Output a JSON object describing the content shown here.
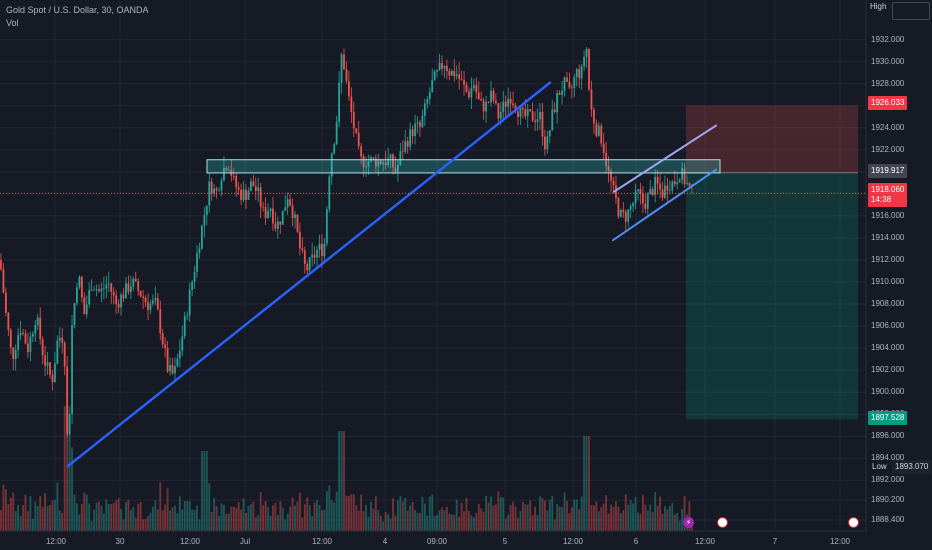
{
  "header": {
    "symbol": "Gold Spot / U.S. Dollar, 30, OANDA",
    "volume_label": "Vol"
  },
  "colors": {
    "background": "#161a25",
    "grid": "#232734",
    "up": "#26a69a",
    "down": "#ef5350",
    "trendline": "#2962ff",
    "channel": "#4d8ff5",
    "channel_upper": "#9fa8f5",
    "zone": "#37c4c4",
    "risk": "#ef5350",
    "reward": "#089981"
  },
  "chart_data": {
    "type": "candlestick",
    "title": "Gold Spot / U.S. Dollar, 30, OANDA",
    "xlabel": "",
    "ylabel": "",
    "ylim": [
      1887.4,
      1935.6
    ],
    "y_ticks": [
      "1932.000",
      "1930.000",
      "1928.000",
      "1926.000",
      "1924.000",
      "1922.000",
      "1920.000",
      "1918.000",
      "1916.000",
      "1914.000",
      "1912.000",
      "1910.000",
      "1908.000",
      "1906.000",
      "1904.000",
      "1902.000",
      "1900.000",
      "1898.000",
      "1896.000",
      "1894.000",
      "1892.000",
      "1890.200",
      "1888.400"
    ],
    "x_ticks": [
      "12:00",
      "30",
      "12:00",
      "Jul",
      "12:00",
      "4",
      "09:00",
      "5",
      "12:00",
      "6",
      "12:00",
      "7",
      "12:00"
    ],
    "series_path": [
      [
        0,
        1912
      ],
      [
        6,
        1907
      ],
      [
        12,
        1903
      ],
      [
        20,
        1906
      ],
      [
        28,
        1904
      ],
      [
        36,
        1907
      ],
      [
        44,
        1903
      ],
      [
        52,
        1901
      ],
      [
        58,
        1905
      ],
      [
        64,
        1905
      ],
      [
        68,
        1893.5
      ],
      [
        72,
        1906
      ],
      [
        78,
        1911
      ],
      [
        84,
        1907
      ],
      [
        92,
        1910
      ],
      [
        100,
        1909
      ],
      [
        108,
        1910
      ],
      [
        116,
        1908
      ],
      [
        124,
        1909
      ],
      [
        132,
        1910
      ],
      [
        140,
        1909
      ],
      [
        148,
        1908
      ],
      [
        156,
        1908
      ],
      [
        162,
        1905
      ],
      [
        168,
        1902
      ],
      [
        174,
        1901.5
      ],
      [
        180,
        1904
      ],
      [
        186,
        1907
      ],
      [
        192,
        1910
      ],
      [
        198,
        1913
      ],
      [
        204,
        1916
      ],
      [
        210,
        1919
      ],
      [
        216,
        1918
      ],
      [
        222,
        1920
      ],
      [
        228,
        1921
      ],
      [
        234,
        1919
      ],
      [
        240,
        1918
      ],
      [
        246,
        1918
      ],
      [
        252,
        1919
      ],
      [
        258,
        1918
      ],
      [
        264,
        1916
      ],
      [
        270,
        1917
      ],
      [
        276,
        1915
      ],
      [
        282,
        1916
      ],
      [
        288,
        1918
      ],
      [
        294,
        1916
      ],
      [
        300,
        1913
      ],
      [
        306,
        1911
      ],
      [
        312,
        1912
      ],
      [
        318,
        1913
      ],
      [
        324,
        1913
      ],
      [
        330,
        1921
      ],
      [
        336,
        1924
      ],
      [
        342,
        1931
      ],
      [
        348,
        1927
      ],
      [
        354,
        1924
      ],
      [
        360,
        1921
      ],
      [
        366,
        1921
      ],
      [
        372,
        1921
      ],
      [
        378,
        1921
      ],
      [
        384,
        1921
      ],
      [
        390,
        1921
      ],
      [
        396,
        1920
      ],
      [
        402,
        1922
      ],
      [
        408,
        1923
      ],
      [
        414,
        1924
      ],
      [
        420,
        1924
      ],
      [
        426,
        1926
      ],
      [
        432,
        1928
      ],
      [
        438,
        1929
      ],
      [
        444,
        1930
      ],
      [
        450,
        1929
      ],
      [
        456,
        1929
      ],
      [
        462,
        1928
      ],
      [
        468,
        1927
      ],
      [
        474,
        1928
      ],
      [
        480,
        1926
      ],
      [
        486,
        1926
      ],
      [
        492,
        1927
      ],
      [
        498,
        1925
      ],
      [
        504,
        1926
      ],
      [
        510,
        1927
      ],
      [
        516,
        1926
      ],
      [
        522,
        1925
      ],
      [
        528,
        1925
      ],
      [
        534,
        1925
      ],
      [
        540,
        1925
      ],
      [
        546,
        1922
      ],
      [
        552,
        1925
      ],
      [
        558,
        1927
      ],
      [
        564,
        1928
      ],
      [
        570,
        1927
      ],
      [
        576,
        1929
      ],
      [
        582,
        1929
      ],
      [
        586,
        1932
      ],
      [
        590,
        1926
      ],
      [
        596,
        1924
      ],
      [
        602,
        1923
      ],
      [
        608,
        1920
      ],
      [
        614,
        1918
      ],
      [
        620,
        1916
      ],
      [
        626,
        1916
      ],
      [
        632,
        1917
      ],
      [
        638,
        1918
      ],
      [
        644,
        1917
      ],
      [
        650,
        1918
      ],
      [
        656,
        1919
      ],
      [
        662,
        1918
      ],
      [
        668,
        1919
      ],
      [
        674,
        1919
      ],
      [
        680,
        1920
      ],
      [
        686,
        1919
      ],
      [
        692,
        1918
      ]
    ],
    "lines": [
      {
        "name": "ascending-trendline",
        "from": [
          68,
          1893.3
        ],
        "to": [
          550,
          1928.1
        ]
      },
      {
        "name": "channel-lower",
        "from": [
          613,
          1913.8
        ],
        "to": [
          716,
          1920.2
        ]
      },
      {
        "name": "channel-upper",
        "from": [
          614,
          1918.2
        ],
        "to": [
          716,
          1924.2
        ]
      }
    ],
    "zone": {
      "price_high": 1921.1,
      "price_low": 1919.9,
      "x_start": 207,
      "x_end": 720
    },
    "short_position": {
      "entry": 1919.917,
      "stop": 1926.033,
      "target": 1897.528,
      "x_start": 686,
      "x_end": 858
    },
    "labels": {
      "high_label": "High",
      "low_label": "Low",
      "low_value": "1893.070",
      "stop_value": "1926.033",
      "entry_value": "1919.917",
      "current_value": "1918.060",
      "countdown": "14:38",
      "target_value": "1897.528"
    },
    "current_price": 1918.06
  }
}
